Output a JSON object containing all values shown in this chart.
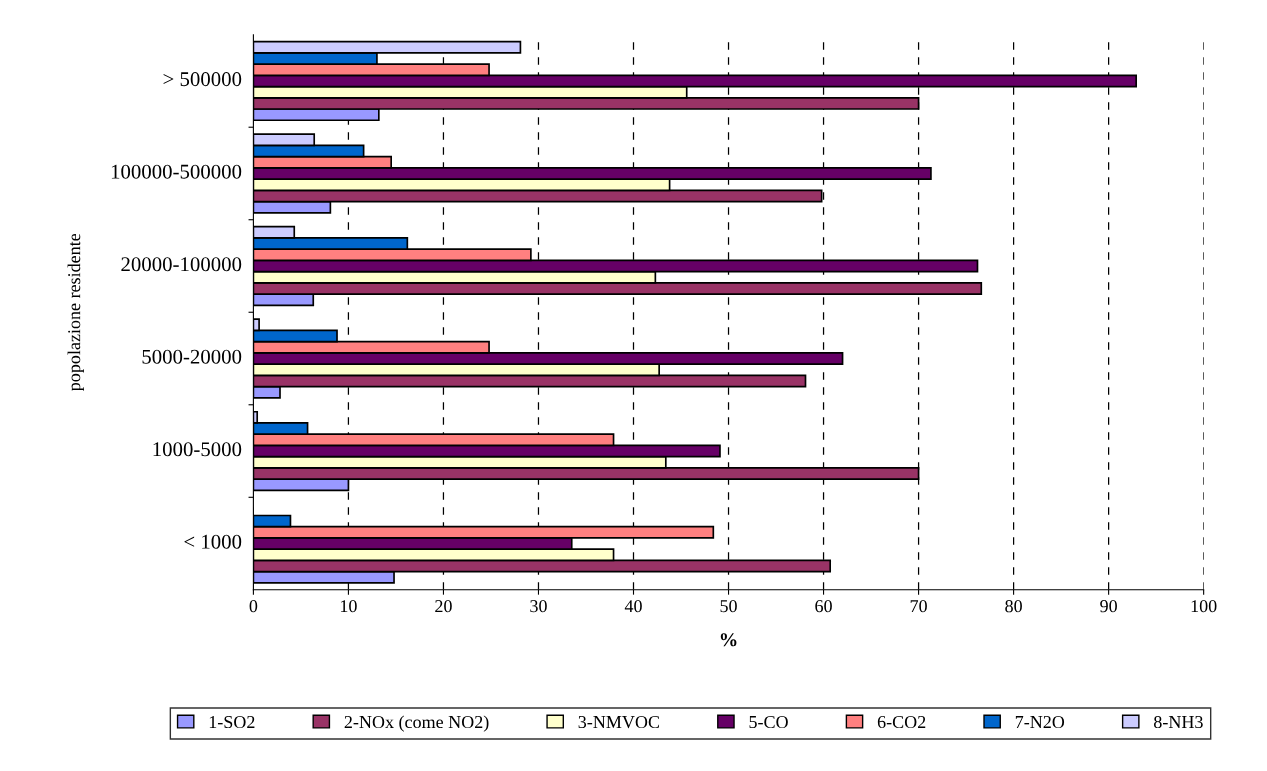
{
  "chart_data": {
    "type": "bar",
    "orientation": "horizontal",
    "xlabel": "%",
    "ylabel": "popolazione residente",
    "categories": [
      "> 500000",
      "100000-500000",
      "20000-100000",
      "5000-20000",
      "1000-5000",
      "< 1000"
    ],
    "xlim": [
      0,
      100
    ],
    "xticks": [
      0,
      10,
      20,
      30,
      40,
      50,
      60,
      70,
      80,
      90,
      100
    ],
    "grid": "x",
    "legend": "bottom",
    "series": [
      {
        "name": "1-SO2",
        "color": "#9999ff",
        "values": [
          13.2,
          8.1,
          6.3,
          2.8,
          10.0,
          14.8
        ]
      },
      {
        "name": "2-NOx (come NO2)",
        "color": "#993366",
        "values": [
          70.0,
          59.8,
          76.6,
          58.1,
          70.0,
          60.7
        ]
      },
      {
        "name": "3-NMVOC",
        "color": "#ffffcc",
        "values": [
          45.6,
          43.8,
          42.3,
          42.7,
          43.4,
          37.9
        ]
      },
      {
        "name": "5-CO",
        "color": "#660066",
        "values": [
          92.9,
          71.3,
          76.2,
          62.0,
          49.1,
          33.5
        ]
      },
      {
        "name": "6-CO2",
        "color": "#ff8080",
        "values": [
          24.8,
          14.5,
          29.2,
          24.8,
          37.9,
          48.4
        ]
      },
      {
        "name": "7-N2O",
        "color": "#0066cc",
        "values": [
          13.0,
          11.6,
          16.2,
          8.8,
          5.7,
          3.9
        ]
      },
      {
        "name": "8-NH3",
        "color": "#ccccff",
        "values": [
          28.1,
          6.4,
          4.3,
          0.6,
          0.4,
          null
        ]
      }
    ]
  }
}
